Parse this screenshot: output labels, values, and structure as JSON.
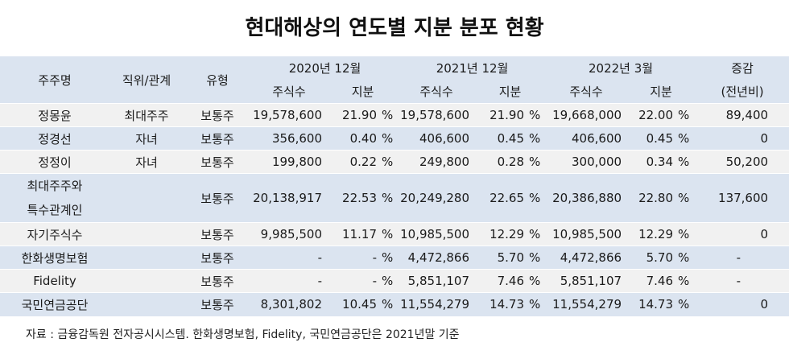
{
  "title": "현대해상의 연도별 지분 분포 현황",
  "header": {
    "shareholder": "주주명",
    "position": "직위/관계",
    "type": "유형",
    "period1": "2020년 12월",
    "period2": "2021년 12월",
    "period3": "2022년 3월",
    "change_line1": "증감",
    "change_line2": "(전년비)",
    "shares": "주식수",
    "stake": "지분"
  },
  "rows": [
    {
      "name": "정몽윤",
      "relation": "최대주주",
      "type": "보통주",
      "s2020": "19,578,600",
      "p2020": "21.90",
      "u2020": "%",
      "s2021": "19,578,600",
      "p2021": "21.90",
      "u2021": "%",
      "s2022": "19,668,000",
      "p2022": "22.00",
      "u2022": "%",
      "change": "89,400"
    },
    {
      "name": "정경선",
      "relation": "자녀",
      "type": "보통주",
      "s2020": "356,600",
      "p2020": "0.40",
      "u2020": "%",
      "s2021": "406,600",
      "p2021": "0.45",
      "u2021": "%",
      "s2022": "406,600",
      "p2022": "0.45",
      "u2022": "%",
      "change": "0"
    },
    {
      "name": "정정이",
      "relation": "자녀",
      "type": "보통주",
      "s2020": "199,800",
      "p2020": "0.22",
      "u2020": "%",
      "s2021": "249,800",
      "p2021": "0.28",
      "u2021": "%",
      "s2022": "300,000",
      "p2022": "0.34",
      "u2022": "%",
      "change": "50,200"
    },
    {
      "name_line1": "최대주주와",
      "name_line2": "특수관계인",
      "relation": "",
      "type": "보통주",
      "s2020": "20,138,917",
      "p2020": "22.53",
      "u2020": "%",
      "s2021": "20,249,280",
      "p2021": "22.65",
      "u2021": "%",
      "s2022": "20,386,880",
      "p2022": "22.80",
      "u2022": "%",
      "change": "137,600"
    },
    {
      "name": "자기주식수",
      "relation": "",
      "type": "보통주",
      "s2020": "9,985,500",
      "p2020": "11.17",
      "u2020": "%",
      "s2021": "10,985,500",
      "p2021": "12.29",
      "u2021": "%",
      "s2022": "10,985,500",
      "p2022": "12.29",
      "u2022": "%",
      "change": "0"
    },
    {
      "name": "한화생명보험",
      "relation": "",
      "type": "보통주",
      "s2020": "-",
      "p2020": "-",
      "u2020": "%",
      "s2021": "4,472,866",
      "p2021": "5.70",
      "u2021": "%",
      "s2022": "4,472,866",
      "p2022": "5.70",
      "u2022": "%",
      "change": "-"
    },
    {
      "name": "Fidelity",
      "relation": "",
      "type": "보통주",
      "s2020": "-",
      "p2020": "-",
      "u2020": "%",
      "s2021": "5,851,107",
      "p2021": "7.46",
      "u2021": "%",
      "s2022": "5,851,107",
      "p2022": "7.46",
      "u2022": "%",
      "change": "-"
    },
    {
      "name": "국민연금공단",
      "relation": "",
      "type": "보통주",
      "s2020": "8,301,802",
      "p2020": "10.45",
      "u2020": "%",
      "s2021": "11,554,279",
      "p2021": "14.73",
      "u2021": "%",
      "s2022": "11,554,279",
      "p2022": "14.73",
      "u2022": "%",
      "change": "0"
    }
  ],
  "footer": "자료 : 금융감독원 전자공시시스템. 한화생명보험, Fidelity, 국민연금공단은 2021년말 기준",
  "colors": {
    "header_bg": "#dbe4f0",
    "row_light": "#f1f1f1",
    "row_blue": "#dbe4f0"
  }
}
